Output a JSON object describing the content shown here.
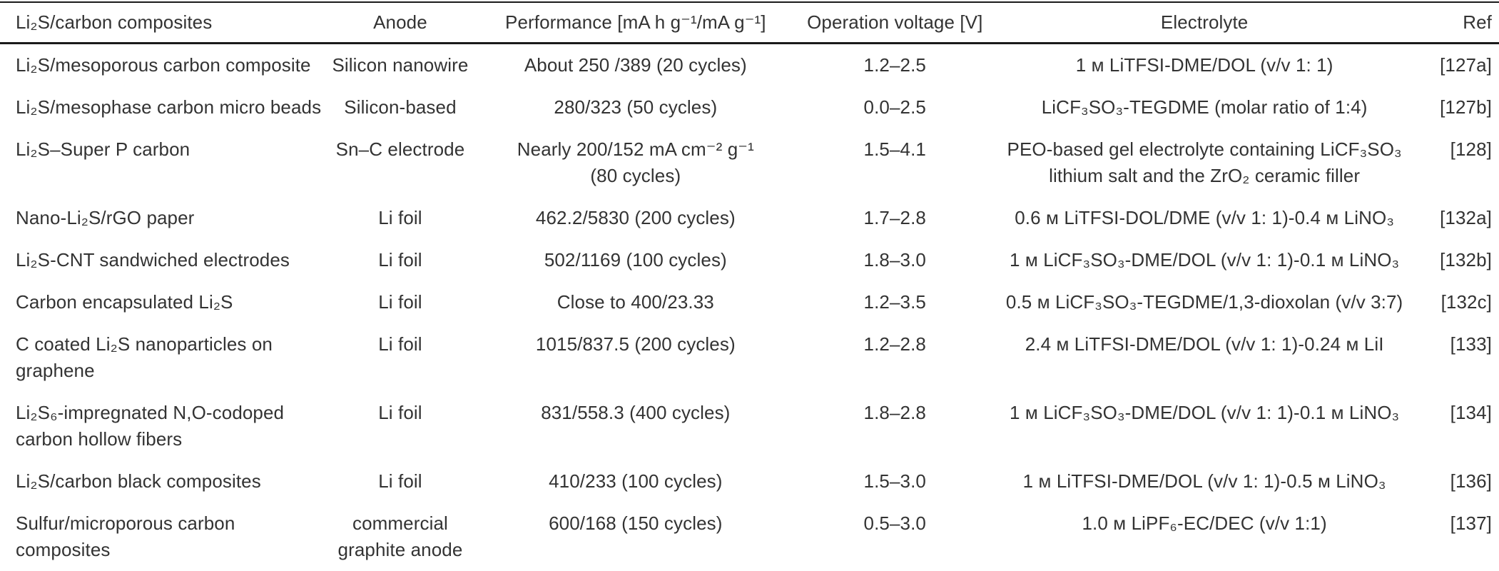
{
  "table": {
    "headers": {
      "composite": "Li₂S/carbon composites",
      "anode": "Anode",
      "performance": "Performance [mA h g⁻¹/mA g⁻¹]",
      "voltage": "Operation voltage [V]",
      "electrolyte": "Electrolyte",
      "ref": "Ref"
    },
    "rows": [
      {
        "composite": "Li₂S/mesoporous carbon composite",
        "anode": "Silicon nanowire",
        "performance": "About 250 /389 (20 cycles)",
        "voltage": "1.2–2.5",
        "electrolyte": "1 ᴍ LiTFSI-DME/DOL (v/v 1: 1)",
        "ref": "[127a]"
      },
      {
        "composite": "Li₂S/mesophase carbon micro beads",
        "anode": "Silicon-based",
        "performance": "280/323 (50 cycles)",
        "voltage": "0.0–2.5",
        "electrolyte": "LiCF₃SO₃-TEGDME (molar ratio of 1:4)",
        "ref": "[127b]"
      },
      {
        "composite": "Li₂S–Super P carbon",
        "anode": "Sn–C electrode",
        "performance": "Nearly 200/152 mA cm⁻² g⁻¹\n(80 cycles)",
        "voltage": "1.5–4.1",
        "electrolyte": "PEO-based gel electrolyte containing LiCF₃SO₃\nlithium salt and the ZrO₂ ceramic filler",
        "ref": "[128]"
      },
      {
        "composite": "Nano-Li₂S/rGO paper",
        "anode": "Li foil",
        "performance": "462.2/5830 (200 cycles)",
        "voltage": "1.7–2.8",
        "electrolyte": "0.6 ᴍ LiTFSI-DOL/DME (v/v 1: 1)-0.4 ᴍ LiNO₃",
        "ref": "[132a]"
      },
      {
        "composite": "Li₂S-CNT sandwiched electrodes",
        "anode": "Li foil",
        "performance": "502/1169 (100 cycles)",
        "voltage": "1.8–3.0",
        "electrolyte": "1 ᴍ LiCF₃SO₃-DME/DOL (v/v 1: 1)-0.1 ᴍ LiNO₃",
        "ref": "[132b]"
      },
      {
        "composite": "Carbon encapsulated Li₂S",
        "anode": "Li foil",
        "performance": "Close to 400/23.33",
        "voltage": "1.2–3.5",
        "electrolyte": "0.5 ᴍ LiCF₃SO₃-TEGDME/1,3-dioxolan (v/v 3:7)",
        "ref": "[132c]"
      },
      {
        "composite": "C coated Li₂S nanoparticles on\ngraphene",
        "anode": "Li foil",
        "performance": "1015/837.5 (200 cycles)",
        "voltage": "1.2–2.8",
        "electrolyte": "2.4 ᴍ LiTFSI-DME/DOL (v/v 1: 1)-0.24 ᴍ LiI",
        "ref": "[133]"
      },
      {
        "composite": "Li₂S₆-impregnated N,O-codoped\ncarbon hollow fibers",
        "anode": "Li foil",
        "performance": "831/558.3 (400 cycles)",
        "voltage": "1.8–2.8",
        "electrolyte": "1 ᴍ LiCF₃SO₃-DME/DOL (v/v 1: 1)-0.1 ᴍ LiNO₃",
        "ref": "[134]"
      },
      {
        "composite": "Li₂S/carbon black composites",
        "anode": "Li foil",
        "performance": "410/233 (100 cycles)",
        "voltage": "1.5–3.0",
        "electrolyte": "1 ᴍ LiTFSI-DME/DOL (v/v 1: 1)-0.5 ᴍ LiNO₃",
        "ref": "[136]"
      },
      {
        "composite": "Sulfur/microporous carbon\ncomposites",
        "anode": "commercial\ngraphite anode",
        "performance": "600/168 (150 cycles)",
        "voltage": "0.5–3.0",
        "electrolyte": "1.0 ᴍ LiPF₆-EC/DEC (v/v 1:1)",
        "ref": "[137]"
      }
    ]
  }
}
